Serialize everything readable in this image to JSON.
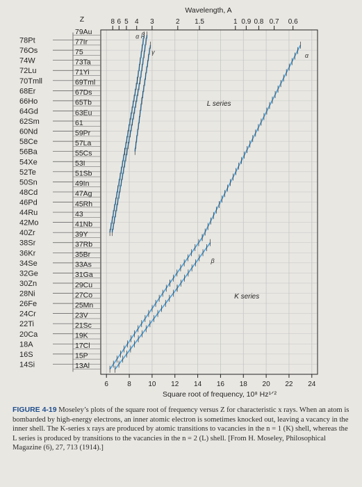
{
  "chart_data": {
    "type": "line",
    "title": "",
    "xlabel": "Square root of frequency, 10⁸ Hz¹ᐟ²",
    "top_axis_label": "Wavelength, A",
    "left_axis_label": "Z",
    "xlim": [
      5.5,
      24.5
    ],
    "ylim": [
      12,
      80
    ],
    "x_ticks": [
      6,
      8,
      10,
      12,
      14,
      16,
      18,
      20,
      22,
      24
    ],
    "top_ticks": [
      {
        "label": "8",
        "x": 6.55
      },
      {
        "label": "6",
        "x": 7.1
      },
      {
        "label": "5",
        "x": 7.75
      },
      {
        "label": "4",
        "x": 8.65
      },
      {
        "label": "3",
        "x": 10.0
      },
      {
        "label": "2",
        "x": 12.25
      },
      {
        "label": "1.5",
        "x": 14.15
      },
      {
        "label": "1",
        "x": 17.3
      },
      {
        "label": "0.9",
        "x": 18.25
      },
      {
        "label": "0.8",
        "x": 19.35
      },
      {
        "label": "0.7",
        "x": 20.7
      },
      {
        "label": "0.6",
        "x": 22.35
      }
    ],
    "left_elements": [
      "78Pt",
      "76Os",
      "74W",
      "72Lu",
      "70Tmll",
      "68Er",
      "66Ho",
      "64Gd",
      "62Sm",
      "60Nd",
      "58Ce",
      "56Ba",
      "54Xe",
      "52Te",
      "50Sn",
      "48Cd",
      "46Pd",
      "44Ru",
      "42Mo",
      "40Zr",
      "38Sr",
      "36Kr",
      "34Se",
      "32Ge",
      "30Zn",
      "28Ni",
      "26Fe",
      "24Cr",
      "22Ti",
      "20Ca",
      "18A",
      "16S",
      "14Si"
    ],
    "right_elements": [
      "79Au",
      "77Ir",
      "75",
      "73Ta",
      "71Yi",
      "69Tml",
      "67Ds",
      "65Tb",
      "63Eu",
      "61",
      "59Pr",
      "57La",
      "55Cs",
      "53I",
      "51Sb",
      "49In",
      "47Ag",
      "45Rh",
      "43",
      "41Nb",
      "39Y",
      "37Rb",
      "35Br",
      "33As",
      "31Ga",
      "29Cu",
      "27Co",
      "25Mn",
      "23V",
      "21Sc",
      "19K",
      "17Cl",
      "15P",
      "13Al"
    ],
    "series": [
      {
        "name": "K series",
        "line": "α",
        "x": [
          6.3,
          11.55,
          14.4,
          23.0
        ],
        "y": [
          13,
          30,
          39,
          77
        ]
      },
      {
        "name": "K series",
        "line": "β",
        "x": [
          6.75,
          12.2,
          15.1
        ],
        "y": [
          13,
          29,
          38
        ]
      },
      {
        "name": "L series",
        "line": "α",
        "x": [
          6.3,
          7.6,
          8.7,
          9.3
        ],
        "y": [
          40,
          56,
          70,
          79
        ]
      },
      {
        "name": "L series",
        "line": "β",
        "x": [
          6.5,
          7.8,
          8.95,
          9.55
        ],
        "y": [
          40,
          56,
          70,
          79
        ]
      },
      {
        "name": "L series",
        "line": "γ",
        "x": [
          8.5,
          9.1,
          9.85
        ],
        "y": [
          56,
          66,
          77
        ]
      }
    ],
    "annotations": [
      {
        "text": "L series",
        "x": 14.8,
        "y": 65
      },
      {
        "text": "K series",
        "x": 17.2,
        "y": 27
      },
      {
        "text": "α",
        "x": 8.55,
        "y": 78.3,
        "series": "L"
      },
      {
        "text": "β",
        "x": 9.05,
        "y": 78.6,
        "series": "L"
      },
      {
        "text": "γ",
        "x": 9.95,
        "y": 75.2,
        "series": "L"
      },
      {
        "text": "α",
        "x": 23.4,
        "y": 74.5,
        "series": "K"
      },
      {
        "text": "β",
        "x": 15.15,
        "y": 34.0,
        "series": "K"
      }
    ],
    "grid": true
  },
  "caption": {
    "label": "FIGURE 4-19",
    "text": " Moseley’s plots of the square root of frequency versus Z for characteristic x rays. When an atom is bombarded by high-energy electrons, an inner atomic electron is sometimes knocked out, leaving a vacancy in the inner shell. The K-series x rays are produced by atomic transitions to vacancies in the n = 1 (K) shell, whereas the L series is produced by transitions to the vacancies in the n = 2 (L) shell. [From H. Moseley, Philosophical Magazine (6), 27, 713 (1914).]"
  },
  "colors": {
    "line": "#4aa3df",
    "grid": "#c5c5c5",
    "axis": "#222222",
    "caption_label": "#1f4e8c"
  }
}
